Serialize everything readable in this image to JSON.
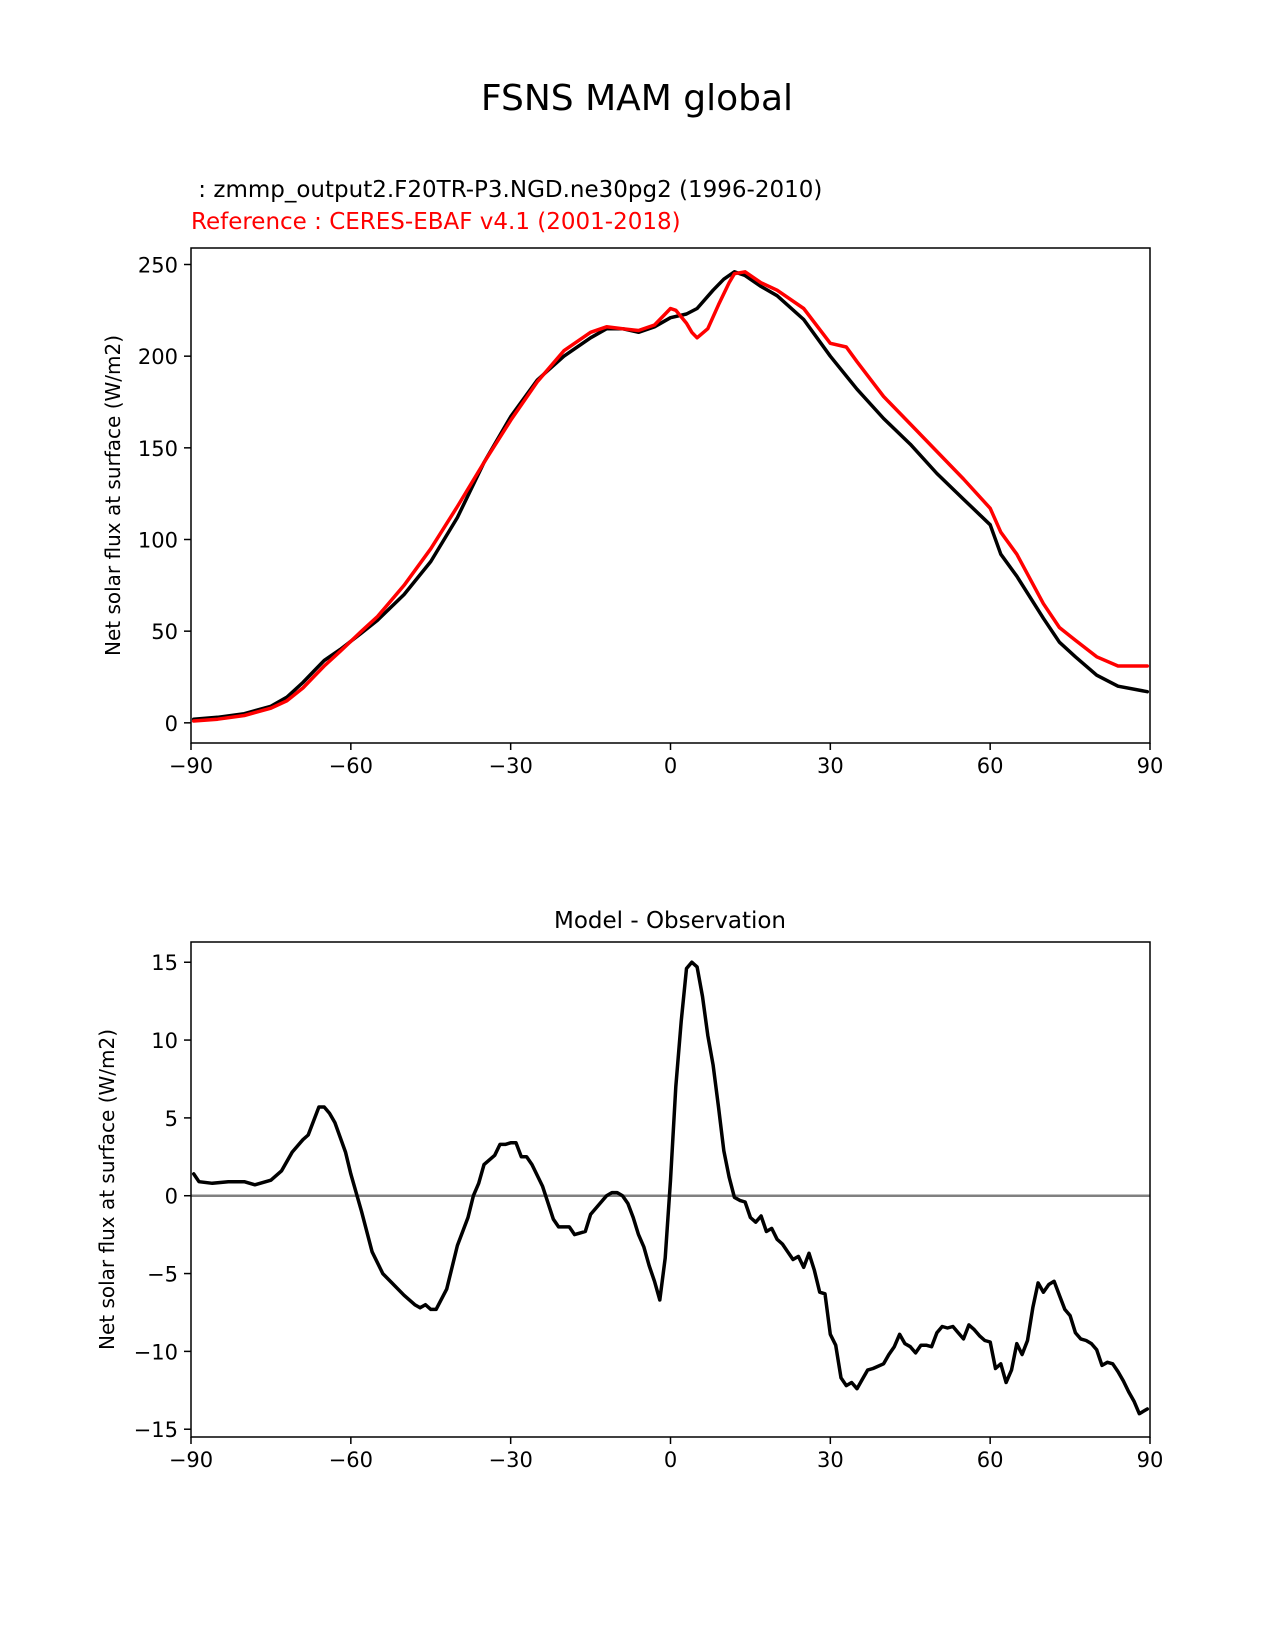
{
  "figure": {
    "suptitle": "FSNS MAM global"
  },
  "colors": {
    "test": "#000000",
    "reference": "#ff0000",
    "zero_line": "#808080"
  },
  "chart_data": [
    {
      "type": "line",
      "test_label": " : zmmp_output2.F20TR-P3.NGD.ne30pg2 (1996-2010)",
      "reference_label": "Reference : CERES-EBAF v4.1 (2001-2018)",
      "ylabel": "Net solar flux at surface (W/m2)",
      "xlim": [
        -90,
        90
      ],
      "ylim": [
        -11,
        259
      ],
      "xticks": [
        -90,
        -60,
        -30,
        0,
        30,
        60,
        90
      ],
      "xticklabels": [
        "−90",
        "−60",
        "−30",
        "0",
        "30",
        "60",
        "90"
      ],
      "yticks": [
        0,
        50,
        100,
        150,
        200,
        250
      ],
      "yticklabels": [
        "0",
        "50",
        "100",
        "150",
        "200",
        "250"
      ],
      "series": [
        {
          "name": "test",
          "x": [
            -89.5,
            -85,
            -80,
            -75,
            -72,
            -69,
            -67,
            -65,
            -62,
            -58,
            -55,
            -50,
            -45,
            -40,
            -35,
            -30,
            -25,
            -20,
            -15,
            -12,
            -9,
            -6,
            -3,
            0,
            3,
            5,
            8,
            10,
            12,
            14,
            17,
            20,
            25,
            30,
            35,
            40,
            45,
            50,
            55,
            60,
            62,
            65,
            70,
            73,
            76,
            80,
            84,
            89.5
          ],
          "y": [
            2,
            3,
            5,
            9,
            14,
            22,
            28,
            34,
            40,
            49,
            56,
            70,
            88,
            112,
            142,
            167,
            187,
            200,
            210,
            215,
            215,
            213,
            216,
            221,
            223,
            226,
            236,
            242,
            246,
            244,
            238,
            233,
            220,
            200,
            182,
            166,
            152,
            136,
            122,
            108,
            92,
            80,
            57,
            44,
            36,
            26,
            20,
            17
          ]
        },
        {
          "name": "reference",
          "x": [
            -89.5,
            -85,
            -80,
            -75,
            -72,
            -69,
            -67,
            -65,
            -62,
            -58,
            -55,
            -50,
            -45,
            -40,
            -35,
            -30,
            -25,
            -20,
            -15,
            -12,
            -9,
            -6,
            -3,
            -1,
            0,
            1,
            3,
            4,
            5,
            7,
            9,
            11,
            12,
            14,
            17,
            20,
            25,
            30,
            33,
            35,
            40,
            45,
            50,
            55,
            60,
            62,
            65,
            70,
            73,
            76,
            80,
            84,
            89.5
          ],
          "y": [
            1,
            2,
            4,
            8,
            12,
            19,
            25,
            31,
            39,
            50,
            58,
            75,
            95,
            118,
            142,
            165,
            186,
            203,
            213,
            216,
            215,
            214,
            217,
            223,
            226,
            225,
            218,
            213,
            210,
            215,
            228,
            240,
            245,
            246,
            240,
            236,
            226,
            207,
            205,
            197,
            178,
            163,
            148,
            133,
            117,
            104,
            92,
            65,
            52,
            45,
            36,
            31,
            31
          ]
        }
      ]
    },
    {
      "type": "line",
      "title": "Model - Observation",
      "ylabel": "Net solar flux at surface (W/m2)",
      "xlim": [
        -90,
        90
      ],
      "ylim": [
        -15.5,
        16.3
      ],
      "xticks": [
        -90,
        -60,
        -30,
        0,
        30,
        60,
        90
      ],
      "xticklabels": [
        "−90",
        "−60",
        "−30",
        "0",
        "30",
        "60",
        "90"
      ],
      "yticks": [
        -15,
        -10,
        -5,
        0,
        5,
        10,
        15
      ],
      "yticklabels": [
        "−15",
        "−10",
        "−5",
        "0",
        "5",
        "10",
        "15"
      ],
      "zero_line": 0,
      "series": [
        {
          "name": "difference",
          "x": [
            -89.5,
            -88.5,
            -86,
            -83,
            -80,
            -78,
            -75,
            -73,
            -71,
            -69,
            -68,
            -66,
            -65,
            -64,
            -63,
            -61,
            -60,
            -58,
            -56,
            -54,
            -52,
            -50,
            -48,
            -47,
            -46,
            -45,
            -44,
            -42,
            -40,
            -38,
            -37,
            -36,
            -35,
            -33,
            -32,
            -31,
            -30,
            -29,
            -28,
            -27,
            -26,
            -24,
            -22,
            -21,
            -20,
            -19,
            -18,
            -17,
            -16,
            -15,
            -13,
            -12,
            -11,
            -10,
            -9,
            -8,
            -7,
            -6,
            -5,
            -4,
            -3,
            -2,
            -1,
            0,
            1,
            2,
            3,
            4,
            5,
            6,
            7,
            8,
            9,
            10,
            11,
            12,
            13,
            14,
            15,
            16,
            17,
            18,
            19,
            20,
            21,
            22,
            23,
            24,
            25,
            26,
            27,
            28,
            29,
            30,
            31,
            32,
            33,
            34,
            35,
            36,
            37,
            38,
            40,
            41,
            42,
            43,
            44,
            45,
            46,
            47,
            48,
            49,
            50,
            51,
            52,
            53,
            54,
            55,
            56,
            57,
            58,
            59,
            60,
            61,
            62,
            63,
            64,
            65,
            66,
            67,
            68,
            69,
            70,
            71,
            72,
            73,
            74,
            75,
            76,
            77,
            78,
            79,
            80,
            81,
            82,
            83,
            84,
            85,
            86,
            87,
            88,
            89,
            89.5
          ],
          "y": [
            1.4,
            0.9,
            0.8,
            0.9,
            0.9,
            0.7,
            1.0,
            1.6,
            2.8,
            3.6,
            3.9,
            5.7,
            5.7,
            5.3,
            4.7,
            2.8,
            1.4,
            -1.0,
            -3.6,
            -5.0,
            -5.7,
            -6.4,
            -7.0,
            -7.2,
            -7.0,
            -7.3,
            -7.3,
            -6.0,
            -3.2,
            -1.4,
            0.0,
            0.8,
            2.0,
            2.6,
            3.3,
            3.3,
            3.4,
            3.4,
            2.5,
            2.5,
            2.0,
            0.6,
            -1.5,
            -2.0,
            -2.0,
            -2.0,
            -2.5,
            -2.4,
            -2.3,
            -1.2,
            -0.4,
            0.0,
            0.2,
            0.2,
            0.0,
            -0.5,
            -1.4,
            -2.5,
            -3.3,
            -4.5,
            -5.5,
            -6.7,
            -4.0,
            1.0,
            7.0,
            11.2,
            14.6,
            15.0,
            14.7,
            12.8,
            10.3,
            8.4,
            5.7,
            2.9,
            1.2,
            -0.1,
            -0.3,
            -0.4,
            -1.4,
            -1.7,
            -1.3,
            -2.3,
            -2.1,
            -2.8,
            -3.1,
            -3.6,
            -4.1,
            -3.9,
            -4.6,
            -3.7,
            -4.8,
            -6.2,
            -6.3,
            -8.9,
            -9.6,
            -11.7,
            -12.2,
            -12.0,
            -12.4,
            -11.8,
            -11.2,
            -11.1,
            -10.8,
            -10.2,
            -9.7,
            -8.9,
            -9.5,
            -9.7,
            -10.1,
            -9.6,
            -9.6,
            -9.7,
            -8.8,
            -8.4,
            -8.5,
            -8.4,
            -8.8,
            -9.2,
            -8.3,
            -8.6,
            -9.0,
            -9.3,
            -9.4,
            -11.1,
            -10.8,
            -12.0,
            -11.2,
            -9.5,
            -10.2,
            -9.3,
            -7.2,
            -5.6,
            -6.2,
            -5.7,
            -5.5,
            -6.4,
            -7.3,
            -7.7,
            -8.8,
            -9.2,
            -9.3,
            -9.5,
            -9.9,
            -10.9,
            -10.7,
            -10.8,
            -11.3,
            -11.9,
            -12.6,
            -13.2,
            -14.0,
            -13.8,
            -13.7
          ]
        }
      ]
    }
  ]
}
